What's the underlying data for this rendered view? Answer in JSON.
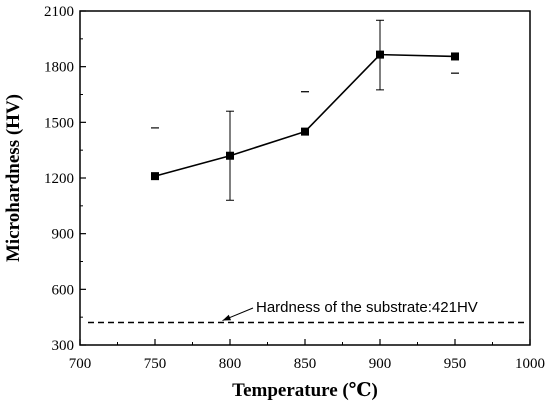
{
  "chart_data": {
    "type": "line",
    "title": "",
    "xlabel": "Temperature (℃)",
    "ylabel": "Microhardness (HV)",
    "xlim": [
      700,
      1000
    ],
    "ylim": [
      300,
      2100
    ],
    "x_ticks": [
      700,
      750,
      800,
      850,
      900,
      950,
      1000
    ],
    "y_ticks": [
      300,
      600,
      900,
      1200,
      1500,
      1800,
      2100
    ],
    "grid": false,
    "legend": "none",
    "series": [
      {
        "x": [
          750,
          800,
          850,
          900,
          950
        ],
        "values": [
          1210,
          1320,
          1450,
          1865,
          1855
        ],
        "error_low": [
          1470,
          1080,
          1665,
          1675,
          1765
        ],
        "error_high": [
          1470,
          1560,
          1665,
          2050,
          1765
        ],
        "marker": "square",
        "color": "#000000"
      }
    ],
    "reference_line": {
      "y": 421,
      "style": "dashed",
      "label": "Hardness of the substrate:421HV",
      "arrow_to_x": 795
    }
  }
}
